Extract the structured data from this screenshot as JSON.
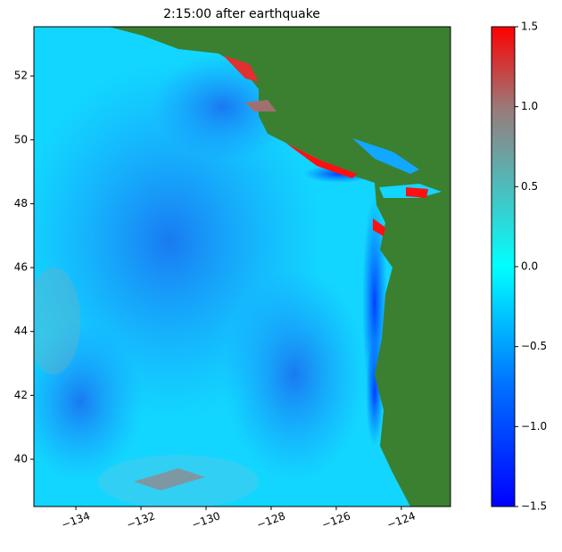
{
  "chart_data": {
    "type": "heatmap",
    "title": "2:15:00 after earthquake",
    "xlim": [
      -135.29,
      -122.49
    ],
    "xticks": [
      {
        "value": -134,
        "label": "−134"
      },
      {
        "value": -132,
        "label": "−132"
      },
      {
        "value": -130,
        "label": "−130"
      },
      {
        "value": -128,
        "label": "−128"
      },
      {
        "value": -126,
        "label": "−126"
      },
      {
        "value": -124,
        "label": "−124"
      }
    ],
    "ylim": [
      38.52,
      53.54
    ],
    "yticks": [
      40,
      42,
      44,
      46,
      48,
      50,
      52
    ],
    "colorbar": {
      "lim": [
        -1.5,
        1.5
      ],
      "ticks": [
        {
          "value": -1.5,
          "label": "−1.5"
        },
        {
          "value": -1.0,
          "label": "−1.0"
        },
        {
          "value": -0.5,
          "label": "−0.5"
        },
        {
          "value": 0,
          "label": "0.0"
        },
        0.5,
        {
          "value": 1.0,
          "label": "1.0"
        },
        1.5
      ]
    }
  }
}
